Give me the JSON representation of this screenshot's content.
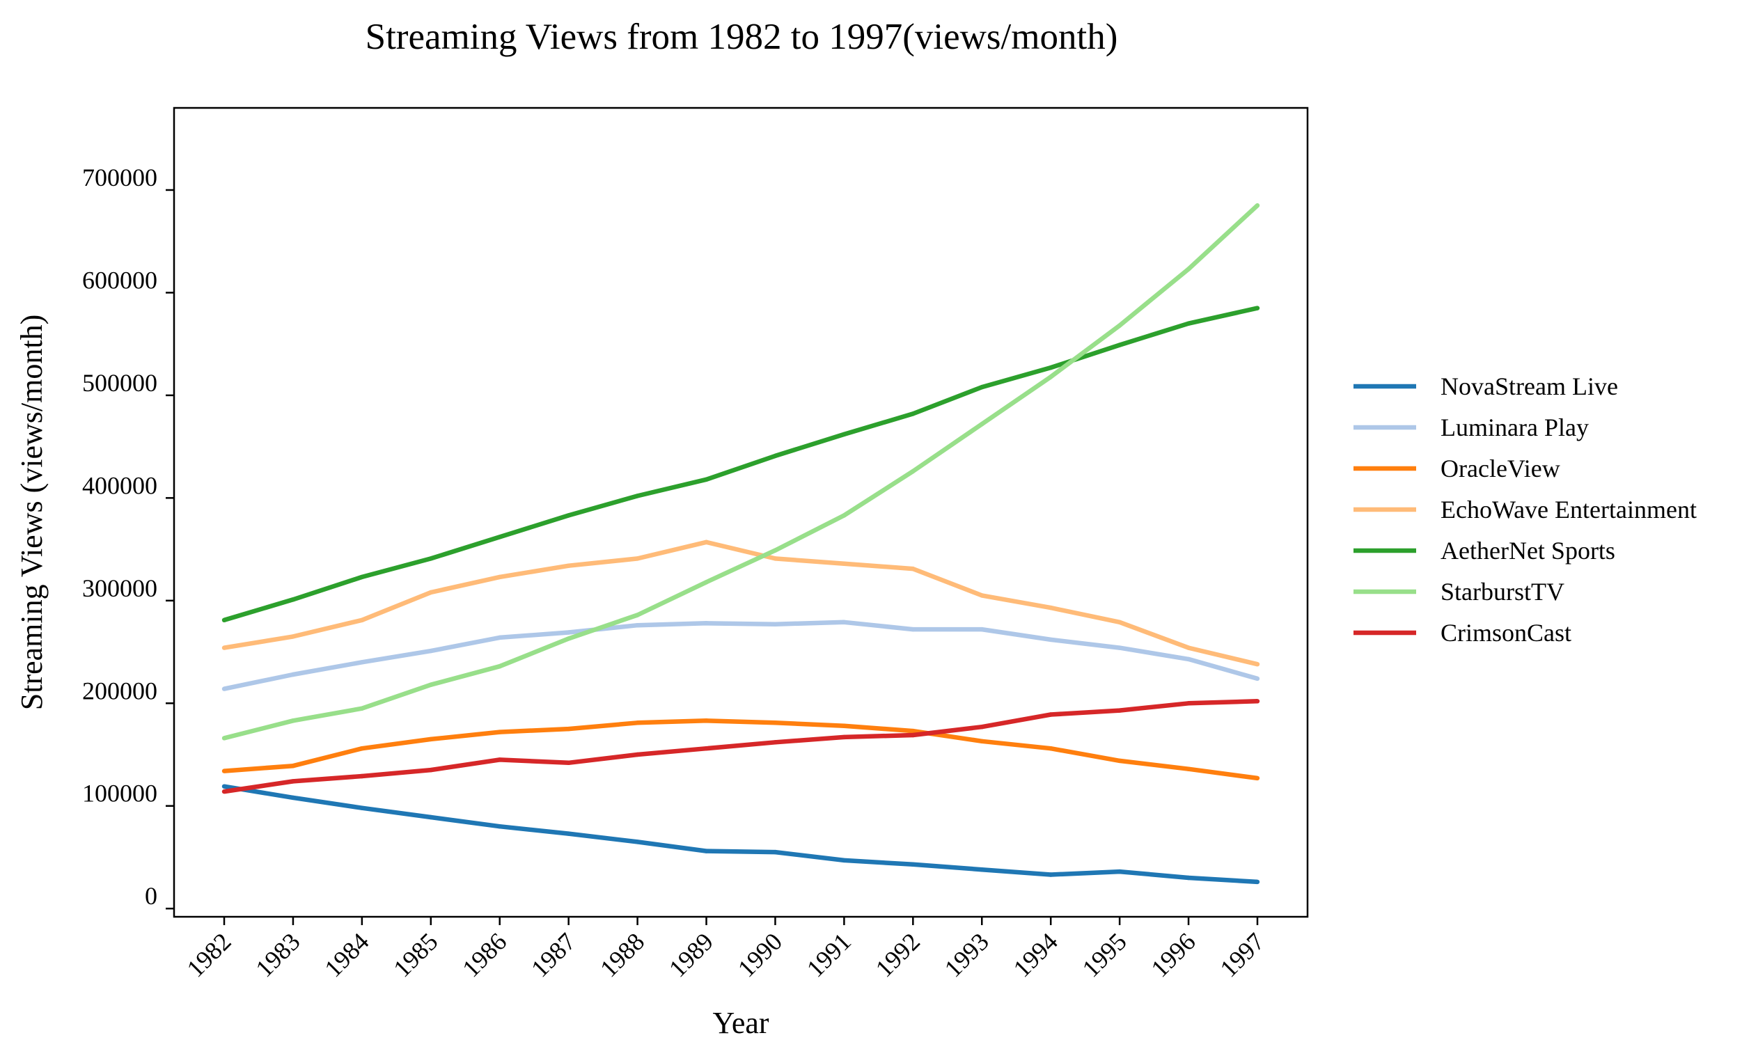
{
  "chart_data": {
    "type": "line",
    "title": "Streaming Views from 1982 to 1997(views/month)",
    "xlabel": "Year",
    "ylabel": "Streaming Views (views/month)",
    "x": [
      "1982",
      "1983",
      "1984",
      "1985",
      "1986",
      "1987",
      "1988",
      "1989",
      "1990",
      "1991",
      "1992",
      "1993",
      "1994",
      "1995",
      "1996",
      "1997"
    ],
    "ylim": [
      -8000,
      780000
    ],
    "yticks": [
      0,
      100000,
      200000,
      300000,
      400000,
      500000,
      600000,
      700000
    ],
    "ytick_labels": [
      "0",
      "100000",
      "200000",
      "300000",
      "400000",
      "500000",
      "600000",
      "700000"
    ],
    "grid": false,
    "legend_position": "right",
    "series": [
      {
        "name": "NovaStream Live",
        "color": "#1f77b4",
        "values": [
          119000,
          108000,
          98000,
          89000,
          80000,
          73000,
          65000,
          56000,
          55000,
          47000,
          43000,
          38000,
          33000,
          36000,
          30000,
          26000
        ]
      },
      {
        "name": "Luminara Play",
        "color": "#aec7e8",
        "values": [
          214000,
          228000,
          240000,
          251000,
          264000,
          269000,
          276000,
          278000,
          277000,
          279000,
          272000,
          272000,
          262000,
          254000,
          243000,
          224000
        ]
      },
      {
        "name": "OracleView",
        "color": "#ff7f0e",
        "values": [
          134000,
          139000,
          156000,
          165000,
          172000,
          175000,
          181000,
          183000,
          181000,
          178000,
          173000,
          163000,
          156000,
          144000,
          136000,
          127000
        ]
      },
      {
        "name": "EchoWave Entertainment",
        "color": "#ffbb78",
        "values": [
          254000,
          265000,
          281000,
          308000,
          323000,
          334000,
          341000,
          357000,
          341000,
          336000,
          331000,
          305000,
          293000,
          279000,
          254000,
          238000
        ]
      },
      {
        "name": "AetherNet Sports",
        "color": "#2ca02c",
        "values": [
          281000,
          301000,
          323000,
          341000,
          362000,
          383000,
          402000,
          418000,
          441000,
          462000,
          482000,
          508000,
          527000,
          549000,
          570000,
          585000
        ]
      },
      {
        "name": "StarburstTV",
        "color": "#98df8a",
        "values": [
          166000,
          183000,
          195000,
          218000,
          236000,
          263000,
          286000,
          318000,
          349000,
          383000,
          426000,
          472000,
          518000,
          568000,
          623000,
          685000
        ]
      },
      {
        "name": "CrimsonCast",
        "color": "#d62728",
        "values": [
          114000,
          124000,
          129000,
          135000,
          145000,
          142000,
          150000,
          156000,
          162000,
          167000,
          169000,
          177000,
          189000,
          193000,
          200000,
          202000
        ]
      }
    ]
  }
}
